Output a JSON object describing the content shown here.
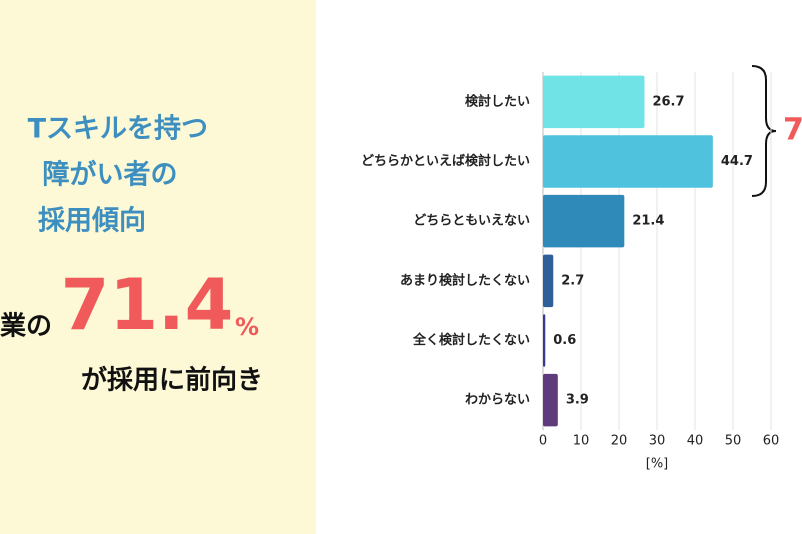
{
  "panel": {
    "title_lines": [
      "Tスキルを持つ",
      "障がい者の",
      "採用傾向"
    ],
    "prefix": "業の",
    "highlight": "71.4",
    "unit": "%",
    "suffix": "が採用に前向き"
  },
  "chart_data": {
    "type": "bar",
    "orientation": "horizontal",
    "categories": [
      "検討したい",
      "どちらかといえば検討したい",
      "どちらともいえない",
      "あまり検討したくない",
      "全く検討したくない",
      "わからない"
    ],
    "values": [
      26.7,
      44.7,
      21.4,
      2.7,
      0.6,
      3.9
    ],
    "colors": [
      "#6fe3e6",
      "#4fc2dd",
      "#2f89b9",
      "#2e5f98",
      "#363a8c",
      "#5e3c7c"
    ],
    "xlim": [
      0,
      60
    ],
    "xticks": [
      0,
      10,
      20,
      30,
      40,
      50,
      60
    ],
    "xlabel": "[%]",
    "grid": true,
    "annotation": "7"
  }
}
